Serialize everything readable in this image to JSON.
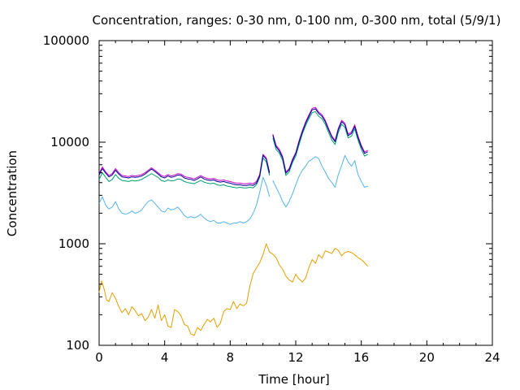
{
  "chart_data": {
    "type": "line",
    "title": "Concentration, ranges: 0-30 nm, 0-100 nm, 0-300 nm, total (5/9/1)",
    "xlabel": "Time [hour]",
    "ylabel": "Concentration",
    "xlim": [
      0,
      24
    ],
    "ylim": [
      100,
      100000
    ],
    "yscale": "log",
    "grid": false,
    "x_ticks": [
      0,
      4,
      8,
      12,
      16,
      20,
      24
    ],
    "x_tick_labels": [
      "0",
      "4",
      "8",
      "12",
      "16",
      "20",
      "24"
    ],
    "y_ticks": [
      100,
      1000,
      10000,
      100000
    ],
    "y_tick_labels": [
      "100",
      "1000",
      "10000",
      "100000"
    ],
    "series": [
      {
        "color": "#e69f00",
        "segments": [
          {
            "x": [
              0,
              0.15,
              0.3,
              0.45,
              0.6,
              0.8,
              1.0,
              1.2,
              1.4,
              1.6,
              1.8,
              2.0,
              2.2,
              2.4,
              2.6,
              2.8,
              3.0,
              3.2,
              3.4,
              3.6,
              3.8,
              4.0,
              4.2,
              4.4,
              4.6,
              4.8,
              5.0,
              5.2,
              5.4,
              5.6,
              5.8,
              6.0,
              6.2,
              6.4,
              6.6,
              6.8,
              7.0,
              7.2,
              7.4,
              7.6,
              7.8,
              8.0,
              8.2,
              8.4,
              8.6,
              8.8,
              9.0,
              9.2,
              9.4,
              9.6,
              9.8,
              10.0,
              10.2,
              10.4,
              10.6,
              10.8,
              11.0,
              11.2,
              11.4,
              11.6,
              11.8,
              12.0,
              12.2,
              12.4,
              12.6,
              12.8,
              13.0,
              13.2,
              13.4,
              13.6,
              13.8,
              14.0,
              14.2,
              14.4,
              14.6,
              14.8,
              15.0,
              15.2,
              15.4,
              15.6,
              15.8,
              16.0,
              16.2,
              16.4
            ],
            "y": [
              330,
              430,
              360,
              280,
              270,
              330,
              290,
              240,
              210,
              230,
              200,
              240,
              220,
              195,
              205,
              175,
              190,
              225,
              185,
              250,
              175,
              200,
              155,
              150,
              225,
              215,
              195,
              160,
              155,
              130,
              125,
              150,
              140,
              160,
              180,
              170,
              185,
              150,
              165,
              215,
              230,
              225,
              270,
              230,
              255,
              245,
              260,
              380,
              510,
              580,
              650,
              780,
              1000,
              830,
              790,
              730,
              620,
              560,
              480,
              440,
              420,
              500,
              450,
              420,
              460,
              580,
              700,
              640,
              780,
              720,
              850,
              830,
              800,
              900,
              860,
              760,
              820,
              840,
              820,
              780,
              730,
              700,
              650,
              600
            ]
          }
        ]
      },
      {
        "color": "#56b4e9",
        "segments": [
          {
            "x": [
              0,
              0.2,
              0.4,
              0.6,
              0.8,
              1.0,
              1.2,
              1.4,
              1.6,
              1.8,
              2.0,
              2.2,
              2.4,
              2.6,
              2.8,
              3.0,
              3.2,
              3.4,
              3.6,
              3.8,
              4.0,
              4.2,
              4.4,
              4.6,
              4.8,
              5.0,
              5.2,
              5.4,
              5.6,
              5.8,
              6.0,
              6.2,
              6.4,
              6.6,
              6.8,
              7.0,
              7.2,
              7.4,
              7.6,
              7.8,
              8.0,
              8.2,
              8.4,
              8.6,
              8.8,
              9.0,
              9.2,
              9.4,
              9.6,
              9.8,
              10.0,
              10.2,
              10.4
            ],
            "y": [
              2500,
              2900,
              2400,
              2200,
              2300,
              2600,
              2200,
              2000,
              1950,
              2000,
              2100,
              2000,
              2050,
              2150,
              2400,
              2600,
              2700,
              2500,
              2300,
              2100,
              2050,
              2250,
              2150,
              2200,
              2300,
              2100,
              1900,
              1800,
              1850,
              1800,
              1850,
              1950,
              1800,
              1700,
              1650,
              1700,
              1600,
              1600,
              1650,
              1600,
              1550,
              1600,
              1600,
              1650,
              1600,
              1650,
              1750,
              2000,
              2400,
              3200,
              4500,
              3800,
              2900
            ]
          },
          {
            "x": [
              10.6,
              10.8,
              11.0,
              11.2,
              11.4,
              11.6,
              11.8,
              12.0,
              12.2,
              12.4,
              12.6,
              12.8,
              13.0,
              13.2,
              13.4,
              13.6,
              13.8,
              14.0,
              14.2,
              14.4,
              14.6,
              14.8,
              15.0,
              15.2,
              15.4,
              15.6,
              15.8,
              16.0,
              16.2,
              16.4
            ],
            "y": [
              4200,
              3600,
              3100,
              2600,
              2300,
              2600,
              3100,
              3800,
              4600,
              5300,
              5800,
              6500,
              6800,
              7200,
              6900,
              5800,
              5100,
              4400,
              4000,
              3600,
              4800,
              5900,
              7400,
              6400,
              5800,
              6600,
              4800,
              4100,
              3600,
              3700
            ]
          }
        ]
      },
      {
        "color": "#009e73",
        "segments": [
          {
            "x": [
              0,
              0.2,
              0.4,
              0.6,
              0.8,
              1.0,
              1.2,
              1.4,
              1.6,
              1.8,
              2.0,
              2.2,
              2.4,
              2.6,
              2.8,
              3.0,
              3.2,
              3.4,
              3.6,
              3.8,
              4.0,
              4.2,
              4.4,
              4.6,
              4.8,
              5.0,
              5.2,
              5.4,
              5.6,
              5.8,
              6.0,
              6.2,
              6.4,
              6.6,
              6.8,
              7.0,
              7.2,
              7.4,
              7.6,
              7.8,
              8.0,
              8.2,
              8.4,
              8.6,
              8.8,
              9.0,
              9.2,
              9.4,
              9.6,
              9.8,
              10.0,
              10.2,
              10.4
            ],
            "y": [
              4300,
              5000,
              4500,
              4100,
              4300,
              4800,
              4400,
              4200,
              4150,
              4100,
              4200,
              4150,
              4200,
              4300,
              4500,
              4700,
              4900,
              4700,
              4500,
              4200,
              4100,
              4250,
              4150,
              4200,
              4350,
              4300,
              4100,
              4000,
              3950,
              3900,
              4050,
              4200,
              4050,
              3950,
              3900,
              3950,
              3800,
              3750,
              3800,
              3700,
              3650,
              3600,
              3550,
              3600,
              3550,
              3550,
              3600,
              3550,
              3800,
              4500,
              7000,
              6400,
              4700
            ]
          },
          {
            "x": [
              10.6,
              10.8,
              11.0,
              11.2,
              11.4,
              11.6,
              11.8,
              12.0,
              12.2,
              12.4,
              12.6,
              12.8,
              13.0,
              13.2,
              13.4,
              13.6,
              13.8,
              14.0,
              14.2,
              14.4,
              14.6,
              14.8,
              15.0,
              15.2,
              15.4,
              15.6,
              15.8,
              16.0,
              16.2,
              16.4
            ],
            "y": [
              11000,
              8500,
              7800,
              6600,
              4700,
              5100,
              6300,
              7300,
              9400,
              12000,
              14500,
              17000,
              19500,
              20000,
              18000,
              17000,
              15000,
              12500,
              10500,
              9500,
              12500,
              15000,
              14000,
              11000,
              11500,
              13500,
              10500,
              8500,
              7300,
              7600
            ]
          }
        ]
      },
      {
        "color": "#cc00cc",
        "segments": [
          {
            "x": [
              0,
              0.2,
              0.4,
              0.6,
              0.8,
              1.0,
              1.2,
              1.4,
              1.6,
              1.8,
              2.0,
              2.2,
              2.4,
              2.6,
              2.8,
              3.0,
              3.2,
              3.4,
              3.6,
              3.8,
              4.0,
              4.2,
              4.4,
              4.6,
              4.8,
              5.0,
              5.2,
              5.4,
              5.6,
              5.8,
              6.0,
              6.2,
              6.4,
              6.6,
              6.8,
              7.0,
              7.2,
              7.4,
              7.6,
              7.8,
              8.0,
              8.2,
              8.4,
              8.6,
              8.8,
              9.0,
              9.2,
              9.4,
              9.6,
              9.8,
              10.0,
              10.2,
              10.4
            ],
            "y": [
              4900,
              5700,
              5100,
              4700,
              4900,
              5500,
              5000,
              4700,
              4650,
              4600,
              4700,
              4650,
              4700,
              4800,
              5000,
              5300,
              5600,
              5300,
              5000,
              4700,
              4600,
              4800,
              4650,
              4750,
              4900,
              4850,
              4600,
              4500,
              4450,
              4350,
              4500,
              4700,
              4500,
              4400,
              4350,
              4400,
              4250,
              4200,
              4250,
              4150,
              4100,
              4000,
              3950,
              3950,
              3900,
              3900,
              3950,
              3900,
              4100,
              4800,
              7600,
              7000,
              5100
            ]
          },
          {
            "x": [
              10.6,
              10.8,
              11.0,
              11.2,
              11.4,
              11.6,
              11.8,
              12.0,
              12.2,
              12.4,
              12.6,
              12.8,
              13.0,
              13.2,
              13.4,
              13.6,
              13.8,
              14.0,
              14.2,
              14.4,
              14.6,
              14.8,
              15.0,
              15.2,
              15.4,
              15.6,
              15.8,
              16.0,
              16.2,
              16.4
            ],
            "y": [
              12000,
              9300,
              8500,
              7200,
              5100,
              5500,
              6800,
              7900,
              10300,
              13000,
              15800,
              18500,
              21500,
              22000,
              19800,
              18600,
              16400,
              13700,
              11500,
              10400,
              13700,
              16400,
              15300,
              12000,
              12600,
              14800,
              11500,
              9300,
              8000,
              8300
            ]
          }
        ]
      },
      {
        "color": "#000090",
        "segments": [
          {
            "x": [
              0,
              0.2,
              0.4,
              0.6,
              0.8,
              1.0,
              1.2,
              1.4,
              1.6,
              1.8,
              2.0,
              2.2,
              2.4,
              2.6,
              2.8,
              3.0,
              3.2,
              3.4,
              3.6,
              3.8,
              4.0,
              4.2,
              4.4,
              4.6,
              4.8,
              5.0,
              5.2,
              5.4,
              5.6,
              5.8,
              6.0,
              6.2,
              6.4,
              6.6,
              6.8,
              7.0,
              7.2,
              7.4,
              7.6,
              7.8,
              8.0,
              8.2,
              8.4,
              8.6,
              8.8,
              9.0,
              9.2,
              9.4,
              9.6,
              9.8,
              10.0,
              10.2,
              10.4
            ],
            "y": [
              4750,
              5500,
              4950,
              4550,
              4750,
              5300,
              4850,
              4550,
              4500,
              4450,
              4550,
              4500,
              4550,
              4650,
              4850,
              5150,
              5450,
              5150,
              4850,
              4550,
              4450,
              4650,
              4500,
              4600,
              4750,
              4700,
              4450,
              4350,
              4300,
              4200,
              4350,
              4550,
              4350,
              4250,
              4200,
              4250,
              4100,
              4050,
              4100,
              4000,
              3950,
              3850,
              3800,
              3800,
              3750,
              3750,
              3800,
              3750,
              3950,
              4650,
              7400,
              6800,
              4950
            ]
          },
          {
            "x": [
              10.6,
              10.8,
              11.0,
              11.2,
              11.4,
              11.6,
              11.8,
              12.0,
              12.2,
              12.4,
              12.6,
              12.8,
              13.0,
              13.2,
              13.4,
              13.6,
              13.8,
              14.0,
              14.2,
              14.4,
              14.6,
              14.8,
              15.0,
              15.2,
              15.4,
              15.6,
              15.8,
              16.0,
              16.2,
              16.4
            ],
            "y": [
              11700,
              9000,
              8200,
              7000,
              4950,
              5350,
              6600,
              7700,
              10000,
              12600,
              15300,
              17900,
              20800,
              21300,
              19200,
              18000,
              15900,
              13300,
              11200,
              10100,
              13300,
              15900,
              14800,
              11600,
              12200,
              14300,
              11100,
              9000,
              7750,
              8050
            ]
          }
        ]
      }
    ]
  }
}
